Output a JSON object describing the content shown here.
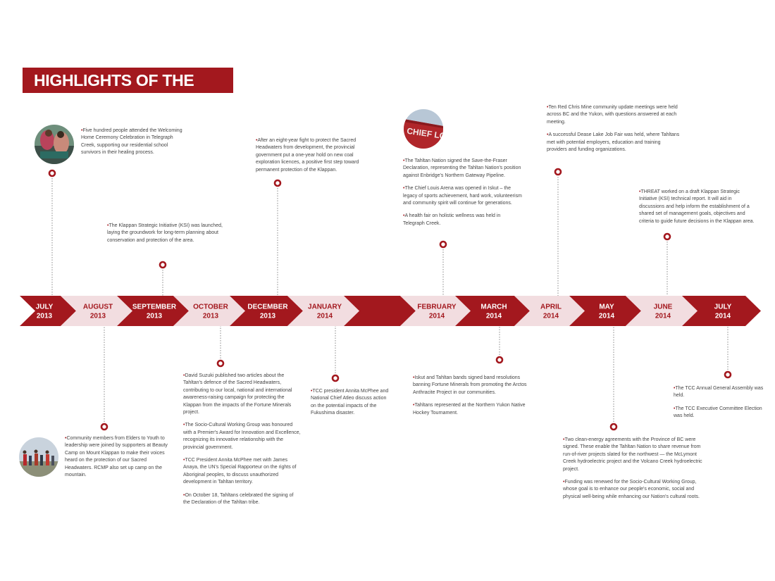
{
  "title": "HIGHLIGHTS OF THE YEAR",
  "colors": {
    "accent": "#a3181e",
    "pale": "#f2dde0",
    "text": "#444444"
  },
  "months": [
    {
      "m": "JULY",
      "y": "2013"
    },
    {
      "m": "AUGUST",
      "y": "2013"
    },
    {
      "m": "SEPTEMBER",
      "y": "2013"
    },
    {
      "m": "OCTOBER",
      "y": "2013"
    },
    {
      "m": "DECEMBER",
      "y": "2013"
    },
    {
      "m": "JANUARY",
      "y": "2014"
    },
    {
      "m": "",
      "y": ""
    },
    {
      "m": "FEBRUARY",
      "y": "2014"
    },
    {
      "m": "MARCH",
      "y": "2014"
    },
    {
      "m": "APRIL",
      "y": "2014"
    },
    {
      "m": "MAY",
      "y": "2014"
    },
    {
      "m": "JUNE",
      "y": "2014"
    },
    {
      "m": "JULY",
      "y": "2014"
    }
  ],
  "events": {
    "jul2013": [
      "Five hundred people attended the Welcoming Home Ceremony Celebration in Telegraph Creek, supporting our residential school survivors in their healing process."
    ],
    "aug2013": [
      "Community members from Elders to Youth to leadership were joined by supporters at Beauty Camp on Mount Klappan to make their voices heard on the protection of our Sacred Headwaters. RCMP also set up camp on the mountain."
    ],
    "sep2013": [
      "The Klappan Strategic Initiative (KSI) was launched, laying the groundwork for long-term planning about conservation and protection of the area."
    ],
    "oct2013": [
      "David Suzuki published two articles about the Tahltan's defence of the Sacred Headwaters, contributing to our local, national and international awareness-raising campaign for protecting the Klappan from the impacts of the Fortune Minerals project.",
      "The Socio-Cultural Working Group was honoured with a Premier's Award for Innovation and Excellence, recognizing its innovative relationship with the provincial government.",
      "TCC President Annita McPhee met with James Anaya, the UN's Special Rapporteur on the rights of Aboriginal peoples, to discuss unauthorized development in Tahltan territory.",
      "On October 18, Tahltans celebrated the signing of the Declaration of the Tahltan tribe."
    ],
    "dec2013": [
      "After an eight-year fight to protect the Sacred Headwaters from development, the provincial government put a one-year hold on new coal exploration licences, a positive first step toward permanent protection of the Klappan."
    ],
    "jan2014": [
      "TCC president Annita McPhee and National Chief Atleo discuss action on the potential impacts of the Fukushima disaster."
    ],
    "feb2014": [
      "The Tahltan Nation signed the Save-the-Fraser Declaration, representing the Tahltan Nation's position against Enbridge's Northern Gateway Pipeline.",
      "The Chief Louis Arena was opened in Iskut – the legacy of sports achievement, hard work, volunteerism and community spirit will continue for generations.",
      "A health fair on holistic wellness was held in Telegraph Creek."
    ],
    "mar2014": [
      "Iskut and Tahltan bands signed band resolutions banning Fortune Minerals from promoting the Arctos Anthracite Project in our communities.",
      "Tahltans represented at the Northern Yukon Native Hockey Tournament."
    ],
    "apr2014": [
      "Ten Red Chris Mine community update meetings were held across BC and the Yukon, with questions answered at each meeting.",
      "A successful Dease Lake Job Fair was held, where Tahltans met with potential employers, education and training providers and funding organizations."
    ],
    "may2014": [
      "Two clean-energy agreements with the Province of BC were signed. These enable the Tahltan Nation to share revenue from run-of-river projects slated for the northwest — the McLymont Creek hydroelectric project and the Volcano Creek hydroelectric project.",
      "Funding was renewed for the Socio-Cultural Working Group, whose goal is to enhance our people's economic, social and physical well-being while enhancing our Nation's cultural roots."
    ],
    "jun2014": [
      "THREAT worked on a draft Klappan Strategic Initiative (KSI) technical report. It will aid in discussions and help inform the establishment of a shared set of management goals, objectives and criteria to guide future decisions in the Klappan area."
    ],
    "jul2014": [
      "The TCC Annual General Assembly was held.",
      "The TCC Executive Committee Election was held."
    ]
  },
  "photo_sign_text": "CHIEF LOUIS"
}
